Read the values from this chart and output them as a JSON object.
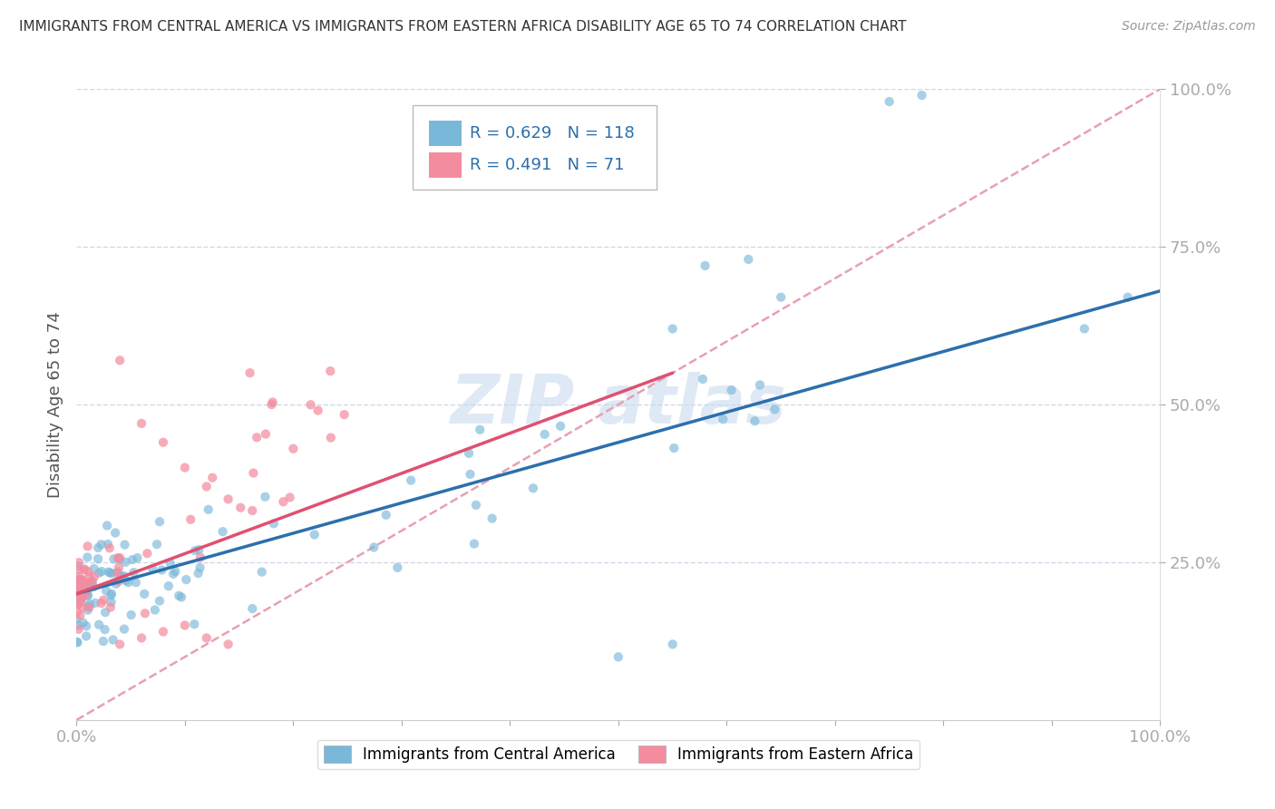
{
  "title": "IMMIGRANTS FROM CENTRAL AMERICA VS IMMIGRANTS FROM EASTERN AFRICA DISABILITY AGE 65 TO 74 CORRELATION CHART",
  "source": "Source: ZipAtlas.com",
  "ylabel": "Disability Age 65 to 74",
  "xlim": [
    0,
    1.0
  ],
  "ylim": [
    0,
    1.0
  ],
  "blue_color": "#7ab8d9",
  "pink_color": "#f48ca0",
  "blue_line_color": "#2c6fad",
  "pink_line_color": "#e05070",
  "dashed_line_color": "#e8a0b0",
  "grid_color": "#d0d8e8",
  "watermark_color": "#c5d8ee",
  "R_blue": 0.629,
  "N_blue": 118,
  "R_pink": 0.491,
  "N_pink": 71,
  "blue_line_x0": 0.0,
  "blue_line_y0": 0.2,
  "blue_line_x1": 1.0,
  "blue_line_y1": 0.68,
  "pink_line_x0": 0.0,
  "pink_line_y0": 0.2,
  "pink_line_x1": 0.55,
  "pink_line_y1": 0.55,
  "dash_line_x0": 0.0,
  "dash_line_y0": 0.0,
  "dash_line_x1": 1.0,
  "dash_line_y1": 1.0
}
